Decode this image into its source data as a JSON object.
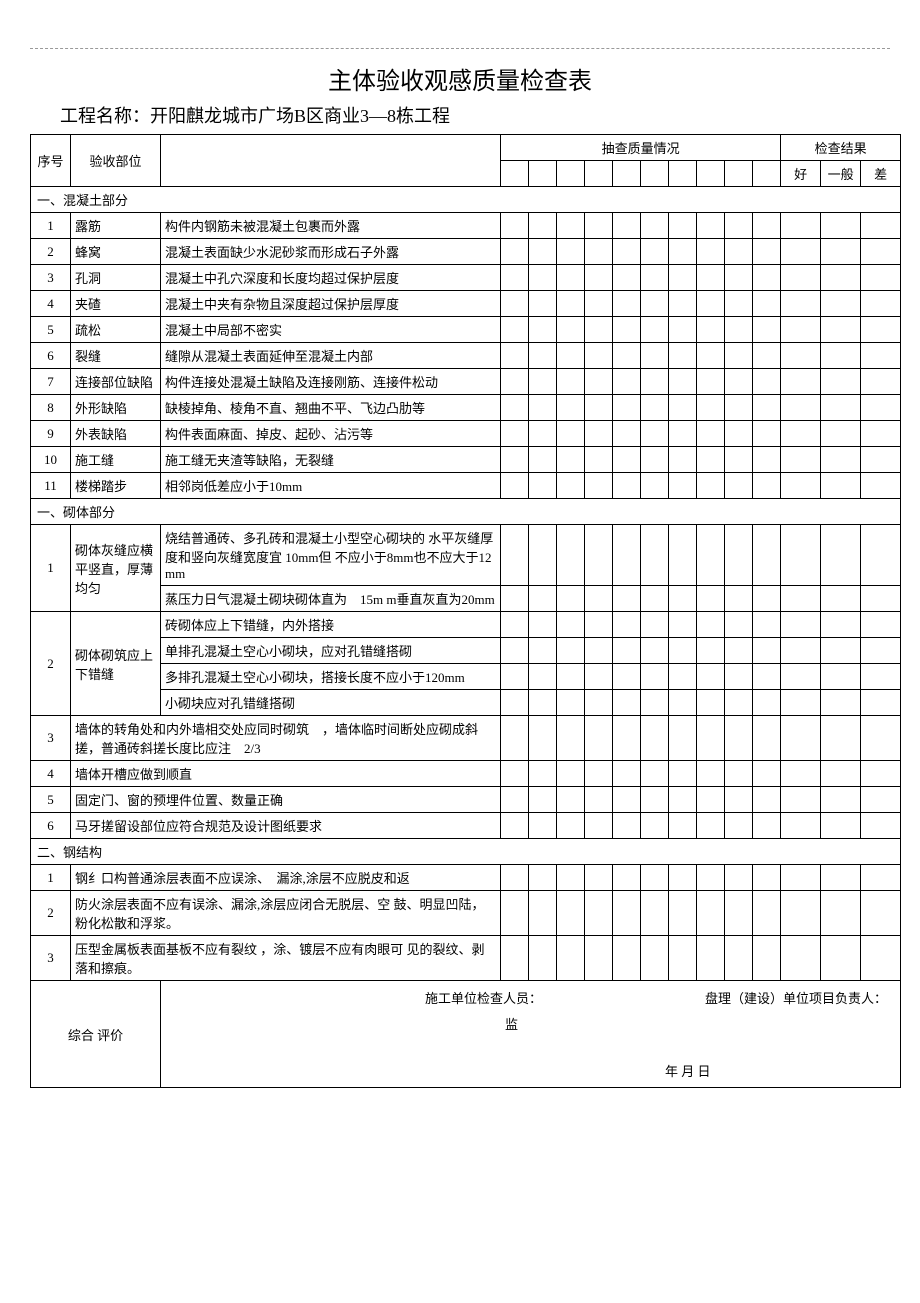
{
  "title": "主体验收观感质量检查表",
  "project_label": "工程名称：",
  "project_name": "开阳麒龙城市广场B区商业3—8栋工程",
  "header": {
    "seq": "序号",
    "part": "验收部位",
    "qc": "抽查质量情况",
    "result": "检查结果",
    "good": "好",
    "normal": "一般",
    "bad": "差"
  },
  "section1": "一、混凝土部分",
  "concrete": [
    {
      "no": "1",
      "part": "露筋",
      "desc": "构件内钢筋未被混凝土包裹而外露"
    },
    {
      "no": "2",
      "part": "蜂窝",
      "desc": "混凝土表面缺少水泥砂浆而形成石子外露"
    },
    {
      "no": "3",
      "part": "孔洞",
      "desc": "混凝土中孔穴深度和长度均超过保护层度"
    },
    {
      "no": "4",
      "part": "夹碴",
      "desc": "混凝土中夹有杂物且深度超过保护层厚度"
    },
    {
      "no": "5",
      "part": "疏松",
      "desc": "混凝土中局部不密实"
    },
    {
      "no": "6",
      "part": "裂缝",
      "desc": "缝隙从混凝土表面延伸至混凝土内部"
    },
    {
      "no": "7",
      "part": "连接部位缺陷",
      "desc": "构件连接处混凝土缺陷及连接刚筋、连接件松动"
    },
    {
      "no": "8",
      "part": "外形缺陷",
      "desc": "缺棱掉角、棱角不直、翘曲不平、飞边凸肋等"
    },
    {
      "no": "9",
      "part": "外表缺陷",
      "desc": "构件表面麻面、掉皮、起砂、沾污等"
    },
    {
      "no": "10",
      "part": "施工缝",
      "desc": "施工缝无夹渣等缺陷，无裂缝"
    },
    {
      "no": "11",
      "part": "楼梯踏步",
      "desc": "相邻岗低差应小于10mm"
    }
  ],
  "section2": "一、砌体部分",
  "masonry1": {
    "no": "1",
    "part": "砌体灰缝应横平竖直，厚薄均匀",
    "desc1": "烧结普通砖、多孔砖和混凝土小型空心砌块的 水平灰缝厚度和竖向灰缝宽度宜 10mm但 不应小于8mm也不应大于12mm",
    "desc2": "蒸压力日气混凝土砌块砌体直为　15m m垂直灰直为20mm"
  },
  "masonry2": {
    "no": "2",
    "part": "砌体砌筑应上下错缝",
    "d1": "砖砌体应上下错缝，内外搭接",
    "d2": "单排孔混凝土空心小砌块，应对孔错缝搭砌",
    "d3": "多排孔混凝土空心小砌块，搭接长度不应小于120mm",
    "d4": "小砌块应对孔错缝搭砌"
  },
  "masonry_rest": [
    {
      "no": "3",
      "desc": "墙体的转角处和内外墙相交处应同时砌筑　，墙体临时间断处应砌成斜搓，普通砖斜搓长度比应注　2/3"
    },
    {
      "no": "4",
      "desc": "墙体开槽应做到顺直"
    },
    {
      "no": "5",
      "desc": "固定门、窗的预埋件位置、数量正确"
    },
    {
      "no": "6",
      "desc": "马牙搓留设部位应符合规范及设计图纸要求"
    }
  ],
  "section3": "二、钢结构",
  "steel": [
    {
      "no": "1",
      "desc": "钢纟口构普通涂层表面不应误涂、　漏涂,涂层不应脱皮和返"
    },
    {
      "no": "2",
      "desc": "防火涂层表面不应有误涂、漏涂,涂层应闭合无脱层、空 鼓、明显凹陆，粉化松散和浮浆。"
    },
    {
      "no": "3",
      "desc": "压型金属板表面基板不应有裂纹 ，涂、镀层不应有肉眼可 见的裂纹、剥落和擦痕。"
    }
  ],
  "footer": {
    "eval": "综合  评价",
    "inspector": "施工单位检查人员：",
    "supervisor_owner": "盘理（建设）单位项目负责人：",
    "jian": "监",
    "date": "年 月 日"
  }
}
